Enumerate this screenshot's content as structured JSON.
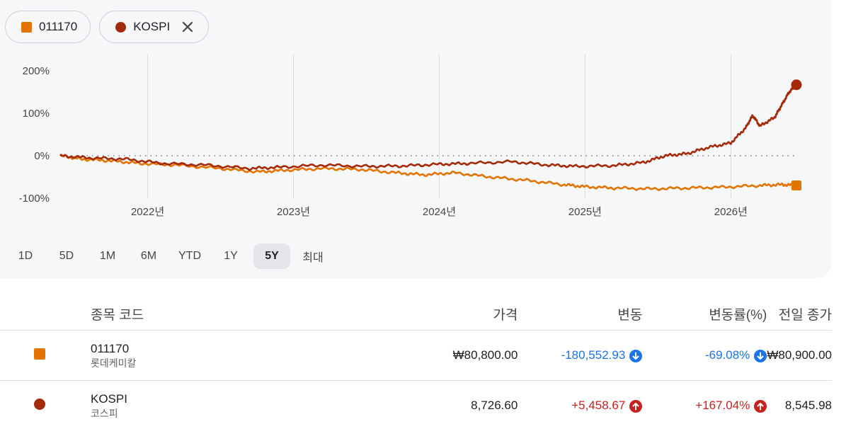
{
  "chips": [
    {
      "label": "011170",
      "color": "#e37400",
      "removable": false
    },
    {
      "label": "KOSPI",
      "color": "#a52a0a",
      "removable": true
    }
  ],
  "chart_data": {
    "type": "line",
    "y_ticks": [
      "200%",
      "100%",
      "0%",
      "-100%"
    ],
    "x_ticks": [
      "2022년",
      "2023년",
      "2024년",
      "2025년",
      "2026년"
    ],
    "ylim": [
      -100,
      200
    ],
    "series": [
      {
        "name": "011170",
        "color": "#e37400",
        "points": [
          [
            2021.4,
            0
          ],
          [
            2021.55,
            -8
          ],
          [
            2021.75,
            -12
          ],
          [
            2021.95,
            -18
          ],
          [
            2022.2,
            -22
          ],
          [
            2022.5,
            -30
          ],
          [
            2022.75,
            -38
          ],
          [
            2022.95,
            -34
          ],
          [
            2023.2,
            -30
          ],
          [
            2023.45,
            -32
          ],
          [
            2023.7,
            -40
          ],
          [
            2023.9,
            -45
          ],
          [
            2024.1,
            -40
          ],
          [
            2024.35,
            -50
          ],
          [
            2024.6,
            -58
          ],
          [
            2024.85,
            -68
          ],
          [
            2025.0,
            -73
          ],
          [
            2025.2,
            -76
          ],
          [
            2025.45,
            -78
          ],
          [
            2025.7,
            -76
          ],
          [
            2025.95,
            -74
          ],
          [
            2026.2,
            -70
          ],
          [
            2026.35,
            -68
          ],
          [
            2026.45,
            -70
          ]
        ]
      },
      {
        "name": "KOSPI",
        "color": "#a52a0a",
        "points": [
          [
            2021.4,
            0
          ],
          [
            2021.6,
            -5
          ],
          [
            2021.85,
            -8
          ],
          [
            2022.1,
            -18
          ],
          [
            2022.4,
            -22
          ],
          [
            2022.7,
            -30
          ],
          [
            2022.9,
            -27
          ],
          [
            2023.2,
            -22
          ],
          [
            2023.5,
            -25
          ],
          [
            2023.75,
            -24
          ],
          [
            2024.0,
            -20
          ],
          [
            2024.2,
            -18
          ],
          [
            2024.5,
            -14
          ],
          [
            2024.75,
            -22
          ],
          [
            2024.95,
            -25
          ],
          [
            2025.2,
            -23
          ],
          [
            2025.4,
            -16
          ],
          [
            2025.55,
            0
          ],
          [
            2025.7,
            5
          ],
          [
            2025.85,
            20
          ],
          [
            2026.0,
            30
          ],
          [
            2026.1,
            65
          ],
          [
            2026.15,
            95
          ],
          [
            2026.2,
            70
          ],
          [
            2026.3,
            90
          ],
          [
            2026.35,
            120
          ],
          [
            2026.4,
            150
          ],
          [
            2026.45,
            167
          ]
        ]
      }
    ],
    "zero_line": true,
    "grid": "vertical"
  },
  "ranges": {
    "items": [
      "1D",
      "5D",
      "1M",
      "6M",
      "YTD",
      "1Y",
      "5Y",
      "최대"
    ],
    "active": "5Y"
  },
  "table": {
    "headers": {
      "symbol": "종목 코드",
      "price": "가격",
      "change": "변동",
      "change_pct": "변동률(%)",
      "prev_close": "전일 종가"
    },
    "rows": [
      {
        "code": "011170",
        "name": "롯데케미칼",
        "price": "₩80,800.00",
        "change": "-180,552.93",
        "change_pct": "-69.08%",
        "prev_close": "₩80,900.00",
        "direction": "down",
        "marker": "square"
      },
      {
        "code": "KOSPI",
        "name": "코스피",
        "price": "8,726.60",
        "change": "+5,458.67",
        "change_pct": "+167.04%",
        "prev_close": "8,545.98",
        "direction": "up",
        "marker": "circle"
      }
    ]
  }
}
